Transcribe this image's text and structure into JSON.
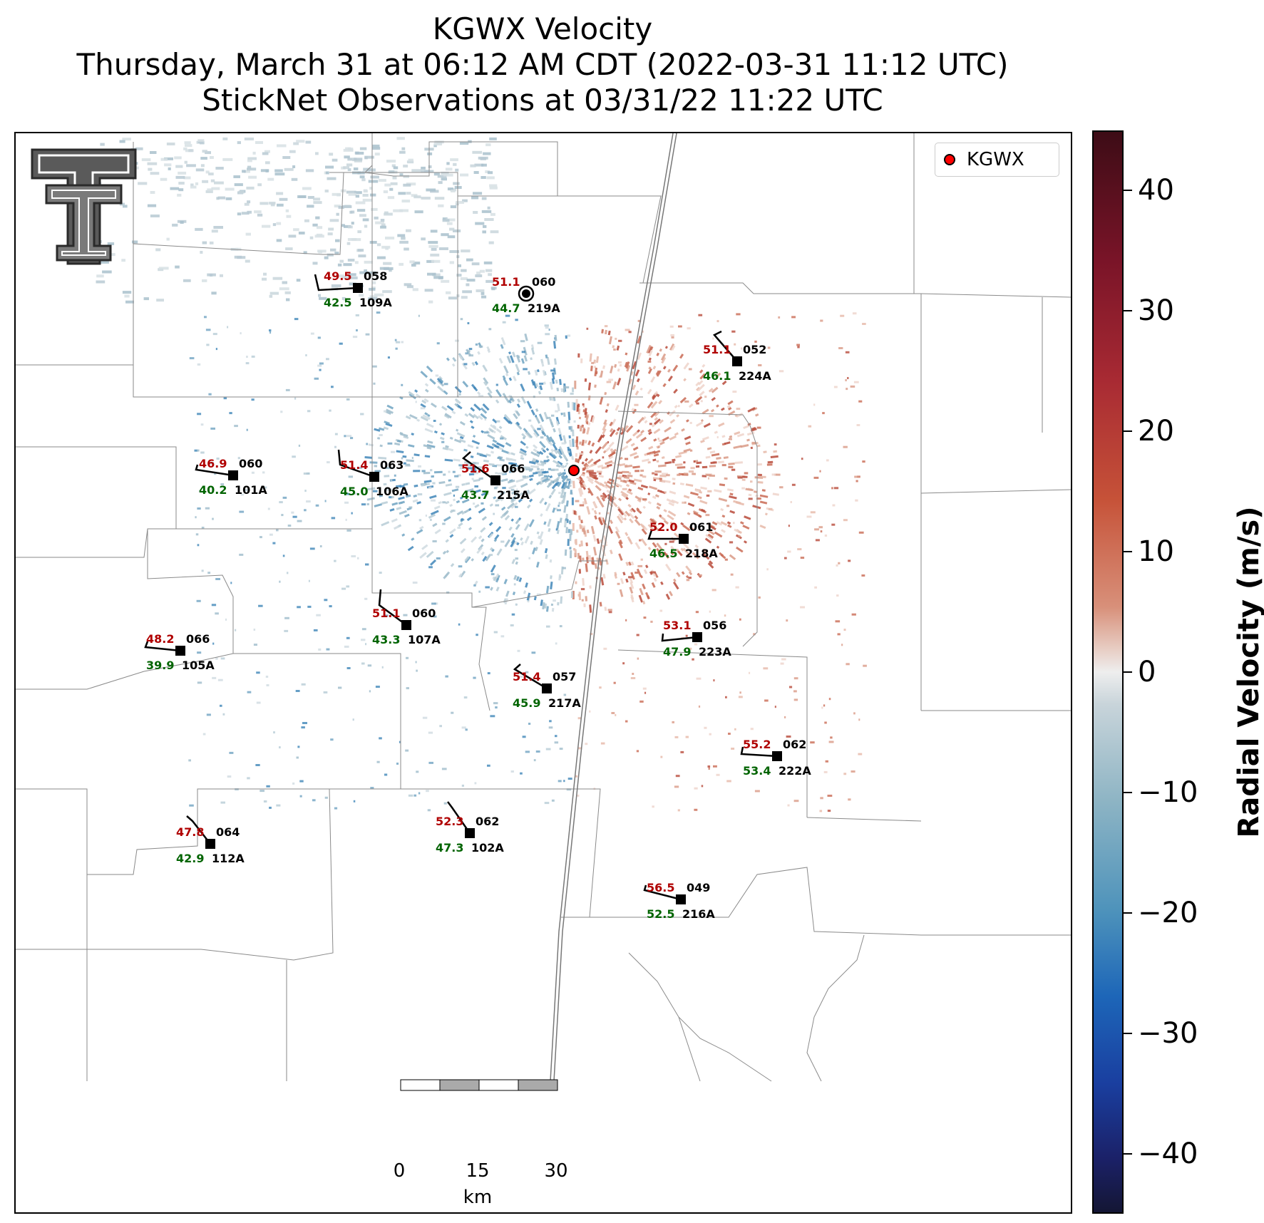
{
  "header": {
    "title_line1": "KGWX Velocity",
    "title_line2": "Thursday, March 31 at 06:12 AM CDT (2022-03-31 11:12 UTC)",
    "title_line3": "StickNet Observations at 03/31/22 11:22 UTC"
  },
  "legend": {
    "label": "KGWX",
    "marker_color": "#ff0000"
  },
  "colorbar": {
    "label": "Radial Velocity (m/s)",
    "range": [
      -45,
      45
    ],
    "ticks": [
      "40",
      "30",
      "20",
      "10",
      "0",
      "−10",
      "−20",
      "−30",
      "−40"
    ],
    "colors": {
      "positive": "#a82a33",
      "neutral": "#eeeeee",
      "negative": "#1d66b8"
    }
  },
  "scale_bar": {
    "labels": [
      "0",
      "15",
      "30"
    ],
    "unit": "km"
  },
  "logo": {
    "name": "texas-tech-double-t-logo"
  },
  "radar_site": {
    "name": "KGWX",
    "color": "#ff0000"
  },
  "station_colors": {
    "temperature": "#b00000",
    "dewpoint": "#006400",
    "id": "#000000"
  },
  "stations": [
    {
      "id": "109A",
      "temp": "49.5",
      "dew": "42.5",
      "pressure": "058"
    },
    {
      "id": "219A",
      "temp": "51.1",
      "dew": "44.7",
      "pressure": "060"
    },
    {
      "id": "224A",
      "temp": "51.1",
      "dew": "46.1",
      "pressure": "052"
    },
    {
      "id": "101A",
      "temp": "46.9",
      "dew": "40.2",
      "pressure": "060"
    },
    {
      "id": "106A",
      "temp": "51.4",
      "dew": "45.0",
      "pressure": "063"
    },
    {
      "id": "215A",
      "temp": "51.6",
      "dew": "43.7",
      "pressure": "066"
    },
    {
      "id": "218A",
      "temp": "52.0",
      "dew": "46.5",
      "pressure": "061"
    },
    {
      "id": "107A",
      "temp": "51.1",
      "dew": "43.3",
      "pressure": "060"
    },
    {
      "id": "223A",
      "temp": "53.1",
      "dew": "47.9",
      "pressure": "056"
    },
    {
      "id": "105A",
      "temp": "48.2",
      "dew": "39.9",
      "pressure": "066"
    },
    {
      "id": "217A",
      "temp": "51.4",
      "dew": "45.9",
      "pressure": "057"
    },
    {
      "id": "222A",
      "temp": "55.2",
      "dew": "53.4",
      "pressure": "062"
    },
    {
      "id": "112A",
      "temp": "47.8",
      "dew": "42.9",
      "pressure": "064"
    },
    {
      "id": "102A",
      "temp": "52.3",
      "dew": "47.3",
      "pressure": "062"
    },
    {
      "id": "216A",
      "temp": "56.5",
      "dew": "52.5",
      "pressure": "049"
    }
  ]
}
